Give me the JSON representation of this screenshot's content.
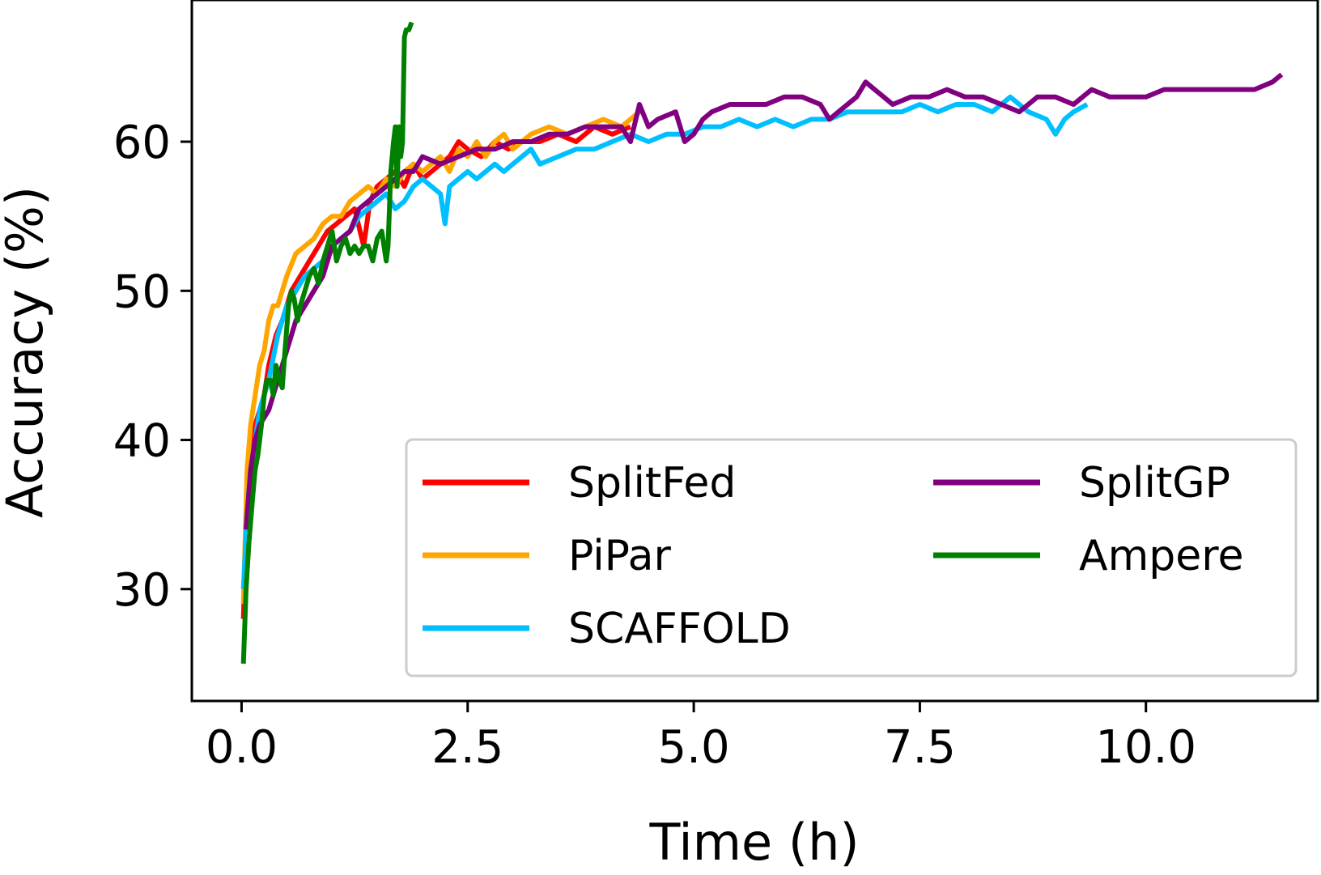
{
  "chart_data": {
    "type": "line",
    "title": "",
    "xlabel": "Time (h)",
    "ylabel": "Accuracy (%)",
    "xlim": [
      -0.55,
      11.9
    ],
    "ylim": [
      22.5,
      69.5
    ],
    "xticks": [
      0.0,
      2.5,
      5.0,
      7.5,
      10.0
    ],
    "xtick_labels": [
      "0.0",
      "2.5",
      "5.0",
      "7.5",
      "10.0"
    ],
    "yticks": [
      30,
      40,
      50,
      60
    ],
    "ytick_labels": [
      "30",
      "40",
      "50",
      "60"
    ],
    "grid": false,
    "legend_position": "lower-right",
    "series": [
      {
        "name": "SplitFed",
        "color": "#ff0000",
        "x": [
          0.02,
          0.06,
          0.1,
          0.15,
          0.2,
          0.25,
          0.3,
          0.38,
          0.45,
          0.55,
          0.65,
          0.75,
          0.85,
          0.95,
          1.05,
          1.15,
          1.25,
          1.35,
          1.42,
          1.5,
          1.6,
          1.7,
          1.8,
          1.9,
          2.0,
          2.1,
          2.2,
          2.3,
          2.4,
          2.5,
          2.65,
          2.8,
          2.95,
          3.1,
          3.3,
          3.5,
          3.7,
          3.9,
          4.1,
          4.3
        ],
        "y": [
          28,
          36,
          40,
          41,
          42,
          43,
          45,
          47,
          48,
          50,
          51,
          52,
          53,
          54,
          54.5,
          55,
          55.5,
          53,
          56,
          57,
          57.5,
          58,
          57,
          58.5,
          57.5,
          58,
          58.5,
          59,
          60,
          59.5,
          59,
          60,
          59.5,
          60,
          60,
          60.5,
          60,
          61,
          60.5,
          61
        ]
      },
      {
        "name": "PiPar",
        "color": "#ffa500",
        "x": [
          0.02,
          0.06,
          0.1,
          0.15,
          0.2,
          0.25,
          0.3,
          0.35,
          0.4,
          0.5,
          0.6,
          0.7,
          0.8,
          0.9,
          1.0,
          1.1,
          1.2,
          1.3,
          1.4,
          1.5,
          1.6,
          1.7,
          1.8,
          1.9,
          2.0,
          2.1,
          2.2,
          2.3,
          2.4,
          2.5,
          2.6,
          2.7,
          2.8,
          2.9,
          3.0,
          3.2,
          3.4,
          3.6,
          3.8,
          4.0,
          4.2,
          4.4
        ],
        "y": [
          29,
          38,
          41,
          43,
          45,
          46,
          48,
          49,
          49,
          51,
          52.5,
          53,
          53.5,
          54.5,
          55,
          55,
          56,
          56.5,
          57,
          56.5,
          57.5,
          57,
          58,
          58.5,
          58,
          58.5,
          59,
          58,
          59.5,
          59,
          60,
          59,
          60,
          60.5,
          59.5,
          60.5,
          61,
          60.5,
          61,
          61.5,
          61,
          62
        ]
      },
      {
        "name": "SCAFFOLD",
        "color": "#00bfff",
        "x": [
          0.02,
          0.06,
          0.1,
          0.15,
          0.2,
          0.25,
          0.3,
          0.4,
          0.5,
          0.6,
          0.7,
          0.8,
          0.9,
          1.0,
          1.1,
          1.2,
          1.3,
          1.4,
          1.5,
          1.6,
          1.7,
          1.8,
          1.9,
          2.0,
          2.1,
          2.2,
          2.25,
          2.3,
          2.4,
          2.5,
          2.6,
          2.7,
          2.8,
          2.9,
          3.0,
          3.1,
          3.2,
          3.3,
          3.5,
          3.7,
          3.9,
          4.1,
          4.3,
          4.5,
          4.7,
          4.9,
          5.1,
          5.3,
          5.5,
          5.7,
          5.9,
          6.1,
          6.3,
          6.5,
          6.7,
          6.9,
          7.1,
          7.3,
          7.5,
          7.7,
          7.9,
          8.1,
          8.3,
          8.5,
          8.7,
          8.9,
          9.0,
          9.1,
          9.2,
          9.35
        ],
        "y": [
          30,
          35,
          38,
          40,
          42,
          43,
          44,
          47,
          49,
          50,
          51,
          51.5,
          52,
          53,
          53.5,
          54,
          55,
          55.5,
          56,
          56.5,
          55.5,
          56,
          57,
          57.5,
          57,
          56.5,
          54.5,
          57,
          57.5,
          58,
          57.5,
          58,
          58.5,
          58,
          58.5,
          59,
          59.5,
          58.5,
          59,
          59.5,
          59.5,
          60,
          60.5,
          60,
          60.5,
          60.5,
          61,
          61,
          61.5,
          61,
          61.5,
          61,
          61.5,
          61.5,
          62,
          62,
          62,
          62,
          62.5,
          62,
          62.5,
          62.5,
          62,
          63,
          62,
          61.5,
          60.5,
          61.5,
          62,
          62.5
        ]
      },
      {
        "name": "SplitGP",
        "color": "#800080",
        "x": [
          0.05,
          0.1,
          0.15,
          0.2,
          0.3,
          0.4,
          0.5,
          0.6,
          0.7,
          0.8,
          0.9,
          1.0,
          1.1,
          1.2,
          1.3,
          1.4,
          1.5,
          1.6,
          1.7,
          1.8,
          1.9,
          2.0,
          2.2,
          2.4,
          2.6,
          2.8,
          3.0,
          3.2,
          3.4,
          3.6,
          3.8,
          4.0,
          4.2,
          4.3,
          4.4,
          4.5,
          4.6,
          4.8,
          4.9,
          5.0,
          5.1,
          5.2,
          5.4,
          5.6,
          5.8,
          6.0,
          6.2,
          6.4,
          6.5,
          6.6,
          6.8,
          6.9,
          7.0,
          7.2,
          7.4,
          7.6,
          7.8,
          8.0,
          8.2,
          8.4,
          8.6,
          8.8,
          9.0,
          9.2,
          9.4,
          9.6,
          9.8,
          10.0,
          10.2,
          10.4,
          10.6,
          10.8,
          11.0,
          11.2,
          11.4,
          11.5
        ],
        "y": [
          34,
          38,
          40,
          41,
          42,
          44,
          46,
          48,
          49,
          50,
          51,
          53,
          53.5,
          54,
          55.5,
          56,
          56.5,
          57,
          57.5,
          58,
          58,
          59,
          58.5,
          59,
          59.5,
          59.5,
          60,
          60,
          60.5,
          60.5,
          61,
          61,
          61,
          60,
          62.5,
          61,
          61.5,
          62,
          60,
          60.5,
          61.5,
          62,
          62.5,
          62.5,
          62.5,
          63,
          63,
          62.5,
          61.5,
          62,
          63,
          64,
          63.5,
          62.5,
          63,
          63,
          63.5,
          63,
          63,
          62.5,
          62,
          63,
          63,
          62.5,
          63.5,
          63,
          63,
          63,
          63.5,
          63.5,
          63.5,
          63.5,
          63.5,
          63.5,
          64,
          64.5
        ]
      },
      {
        "name": "Ampere",
        "color": "#008000",
        "x": [
          0.02,
          0.05,
          0.08,
          0.12,
          0.15,
          0.18,
          0.22,
          0.25,
          0.28,
          0.32,
          0.35,
          0.38,
          0.42,
          0.45,
          0.48,
          0.52,
          0.55,
          0.58,
          0.62,
          0.65,
          0.7,
          0.75,
          0.8,
          0.85,
          0.9,
          0.95,
          1.0,
          1.05,
          1.1,
          1.15,
          1.2,
          1.25,
          1.3,
          1.35,
          1.4,
          1.45,
          1.5,
          1.55,
          1.6,
          1.62,
          1.65,
          1.68,
          1.7,
          1.72,
          1.74,
          1.76,
          1.78,
          1.8,
          1.82,
          1.85,
          1.88
        ],
        "y": [
          25,
          30,
          33,
          36,
          38,
          39,
          41,
          43,
          44,
          44,
          43,
          45,
          44,
          43.5,
          46,
          49,
          50,
          49.5,
          48,
          49,
          50,
          51,
          51.5,
          50.5,
          52,
          53,
          54,
          52,
          53,
          53.5,
          52.5,
          53,
          52.5,
          53,
          53,
          52,
          53.5,
          54,
          52,
          53,
          58,
          60,
          61,
          57,
          61,
          59,
          60,
          67,
          67.5,
          67.5,
          68
        ]
      }
    ]
  }
}
